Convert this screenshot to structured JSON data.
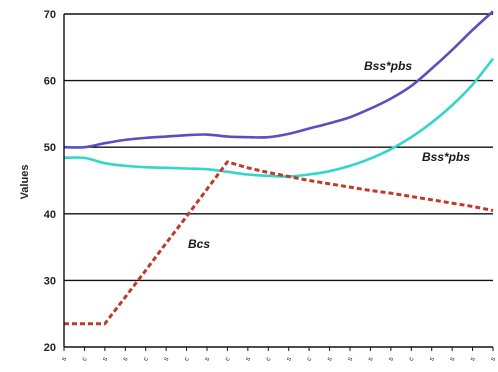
{
  "chart_data": {
    "type": "line",
    "ylabel": "Values",
    "xlabel": "",
    "ylim": [
      20,
      70
    ],
    "yticks": [
      20,
      30,
      40,
      50,
      60,
      70
    ],
    "grid": "horizontal",
    "x": [
      0,
      1,
      2,
      3,
      4,
      5,
      6,
      7,
      8,
      9,
      10,
      11,
      12,
      13,
      14,
      15,
      16,
      17,
      18,
      19,
      20,
      21
    ],
    "xtick_labels": [
      "s",
      "c",
      "s",
      "s",
      "c",
      "s",
      "c",
      "s",
      "c",
      "s",
      "c",
      "s",
      "c",
      "s",
      "s",
      "s",
      "s",
      "c",
      "s",
      "s",
      "s",
      "s"
    ],
    "series": [
      {
        "name": "Bss*pbs",
        "color": "#5b4fc0",
        "values": [
          50.0,
          50.0,
          50.6,
          51.1,
          51.4,
          51.6,
          51.8,
          51.9,
          51.6,
          51.5,
          51.5,
          52.0,
          52.8,
          53.6,
          54.5,
          55.8,
          57.3,
          59.2,
          61.8,
          64.6,
          67.6,
          70.4
        ]
      },
      {
        "name": "Bss*pbs",
        "color": "#33d6c8",
        "values": [
          48.4,
          48.4,
          47.6,
          47.2,
          47.0,
          46.9,
          46.8,
          46.7,
          46.3,
          45.9,
          45.7,
          45.6,
          45.9,
          46.4,
          47.2,
          48.3,
          49.7,
          51.5,
          53.7,
          56.3,
          59.4,
          63.3
        ]
      },
      {
        "name": "Bcs",
        "color": "#c0392b",
        "dashed": true,
        "values": [
          23.5,
          23.5,
          23.5,
          27.5,
          31.5,
          35.6,
          39.6,
          43.7,
          47.8,
          46.9,
          46.2,
          45.6,
          45.0,
          44.5,
          44.0,
          43.5,
          43.1,
          42.6,
          42.1,
          41.6,
          41.1,
          40.5
        ]
      }
    ]
  }
}
